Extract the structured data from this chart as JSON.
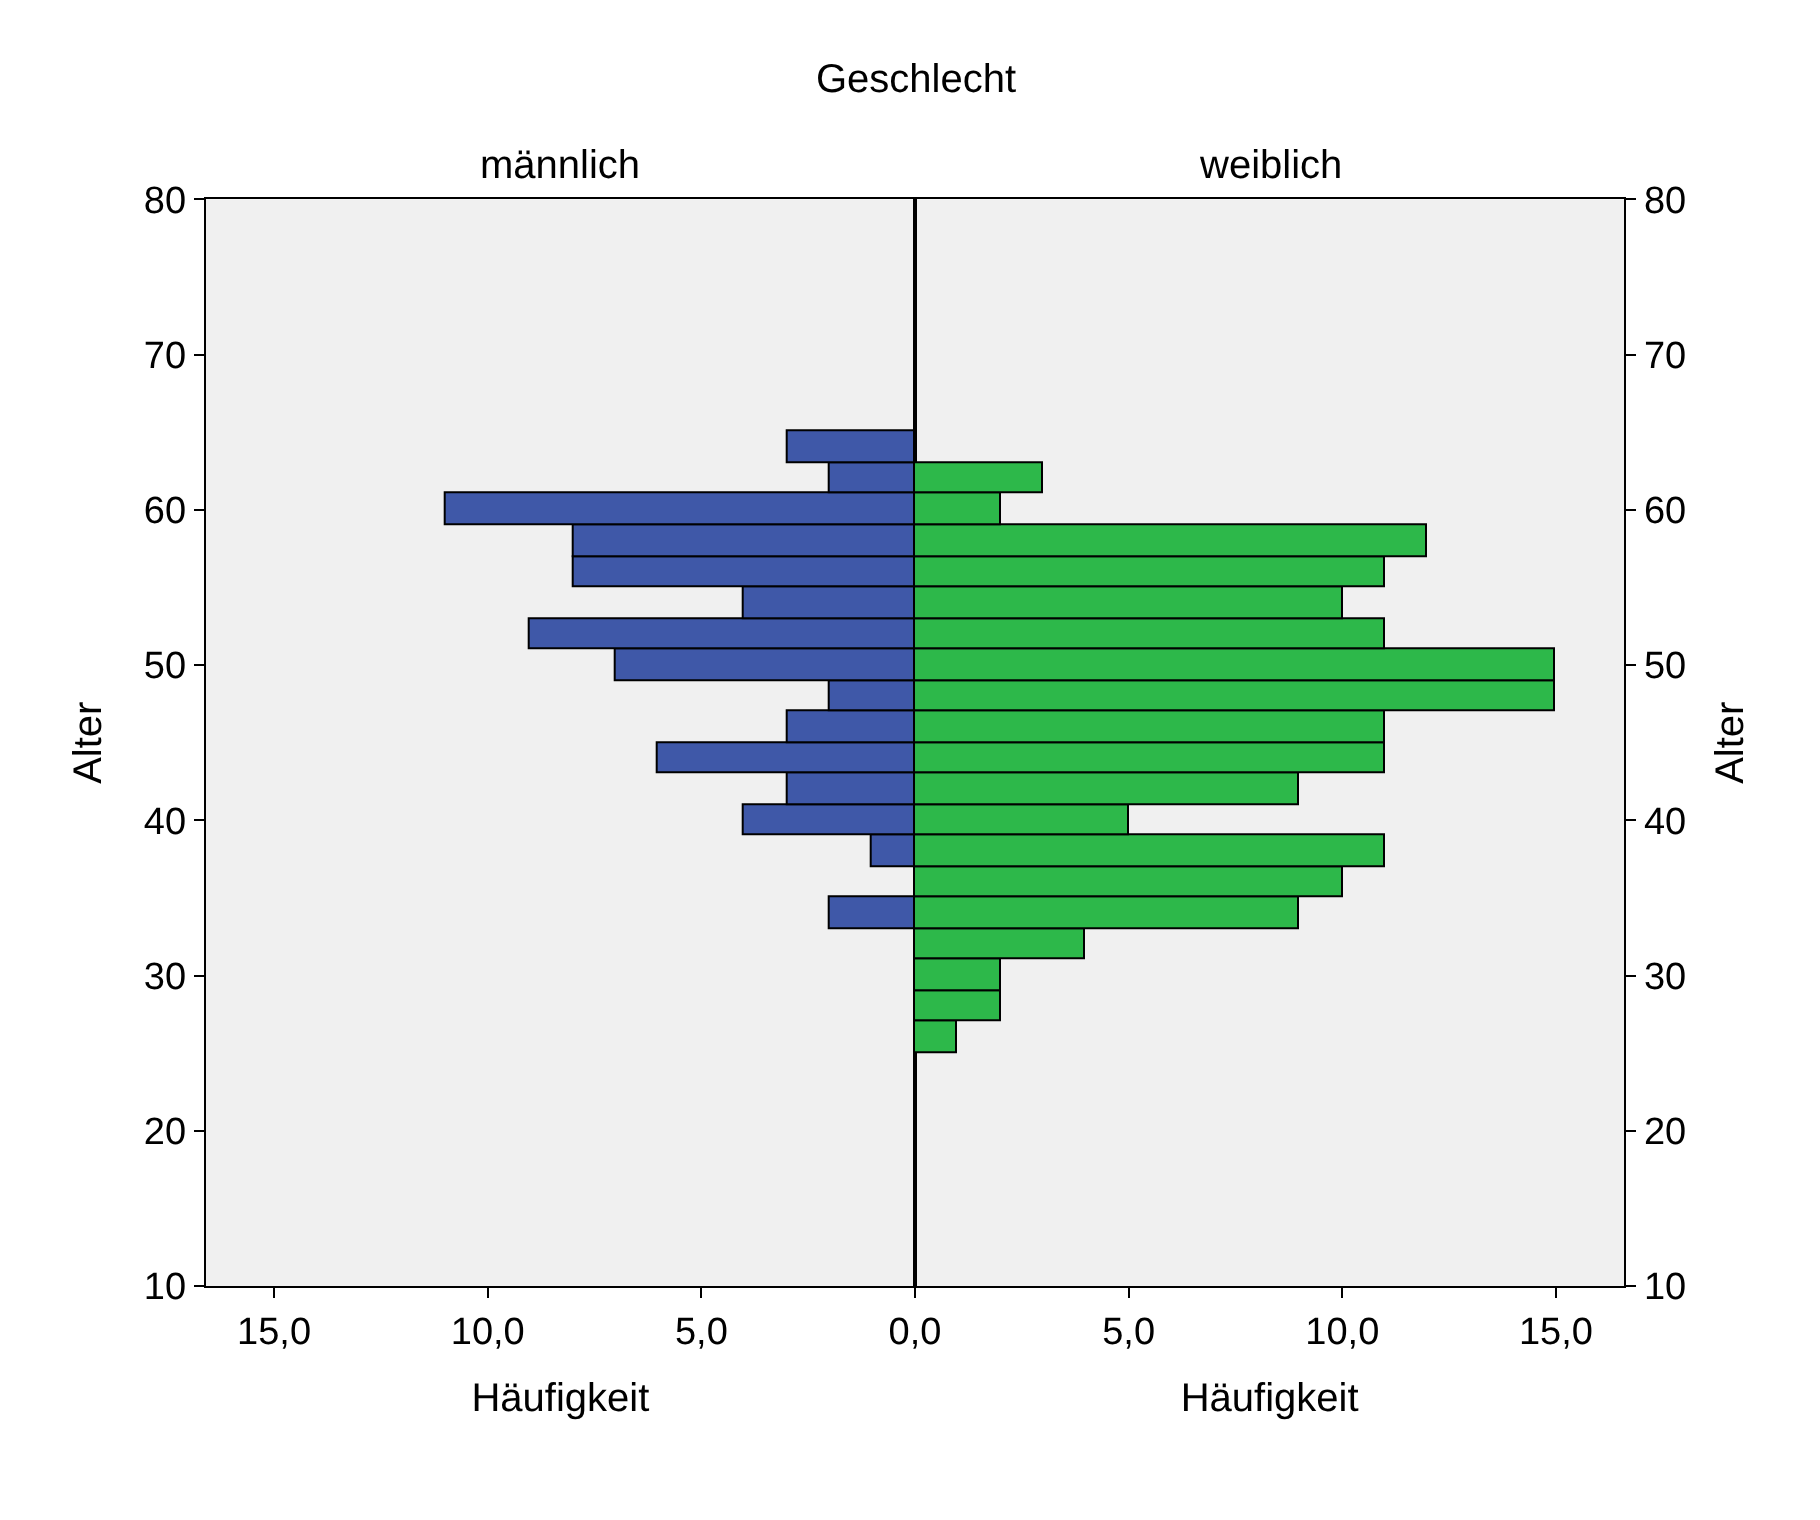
{
  "chart_data": [
    {
      "type": "histogram",
      "orientation": "horizontal",
      "title": "männlich",
      "xlabel": "Häufigkeit",
      "ylabel": "Alter",
      "annotations": [
        "Geschlecht"
      ],
      "bins": [
        33,
        35,
        37,
        39,
        41,
        43,
        45,
        47,
        49,
        51,
        53,
        55,
        57,
        59,
        61,
        63,
        65
      ],
      "values": [
        2,
        null,
        1,
        4,
        3,
        6,
        3,
        2,
        7,
        9,
        4,
        8,
        8,
        11,
        2,
        3
      ],
      "color": "#3f58a8",
      "xlim": [
        16.6,
        0
      ],
      "xticks": [
        {
          "value": 15,
          "label": "15,0"
        },
        {
          "value": 10,
          "label": "10,0"
        },
        {
          "value": 5,
          "label": "5,0"
        },
        {
          "value": 0,
          "label": null
        }
      ],
      "ylim": [
        10,
        80
      ],
      "yticks": [
        10,
        20,
        30,
        40,
        50,
        60,
        70,
        80
      ],
      "grid": false
    },
    {
      "type": "histogram",
      "orientation": "horizontal",
      "title": "weiblich",
      "xlabel": "Häufigkeit",
      "ylabel": "Alter",
      "bins": [
        25,
        27,
        29,
        31,
        33,
        35,
        37,
        39,
        41,
        43,
        45,
        47,
        49,
        51,
        53,
        55,
        57,
        59,
        61,
        63
      ],
      "values": [
        1,
        2,
        2,
        4,
        9,
        10,
        11,
        5,
        9,
        11,
        11,
        15,
        15,
        11,
        10,
        11,
        12,
        2,
        3
      ],
      "color": "#2db84a",
      "xlim": [
        0,
        16.6
      ],
      "xticks": [
        {
          "value": 0,
          "label": "0,0"
        },
        {
          "value": 5,
          "label": "5,0"
        },
        {
          "value": 10,
          "label": "10,0"
        },
        {
          "value": 15,
          "label": "15,0"
        }
      ],
      "ylim": [
        10,
        80
      ],
      "yticks": [
        10,
        20,
        30,
        40,
        50,
        60,
        70,
        80
      ],
      "grid": false
    }
  ]
}
